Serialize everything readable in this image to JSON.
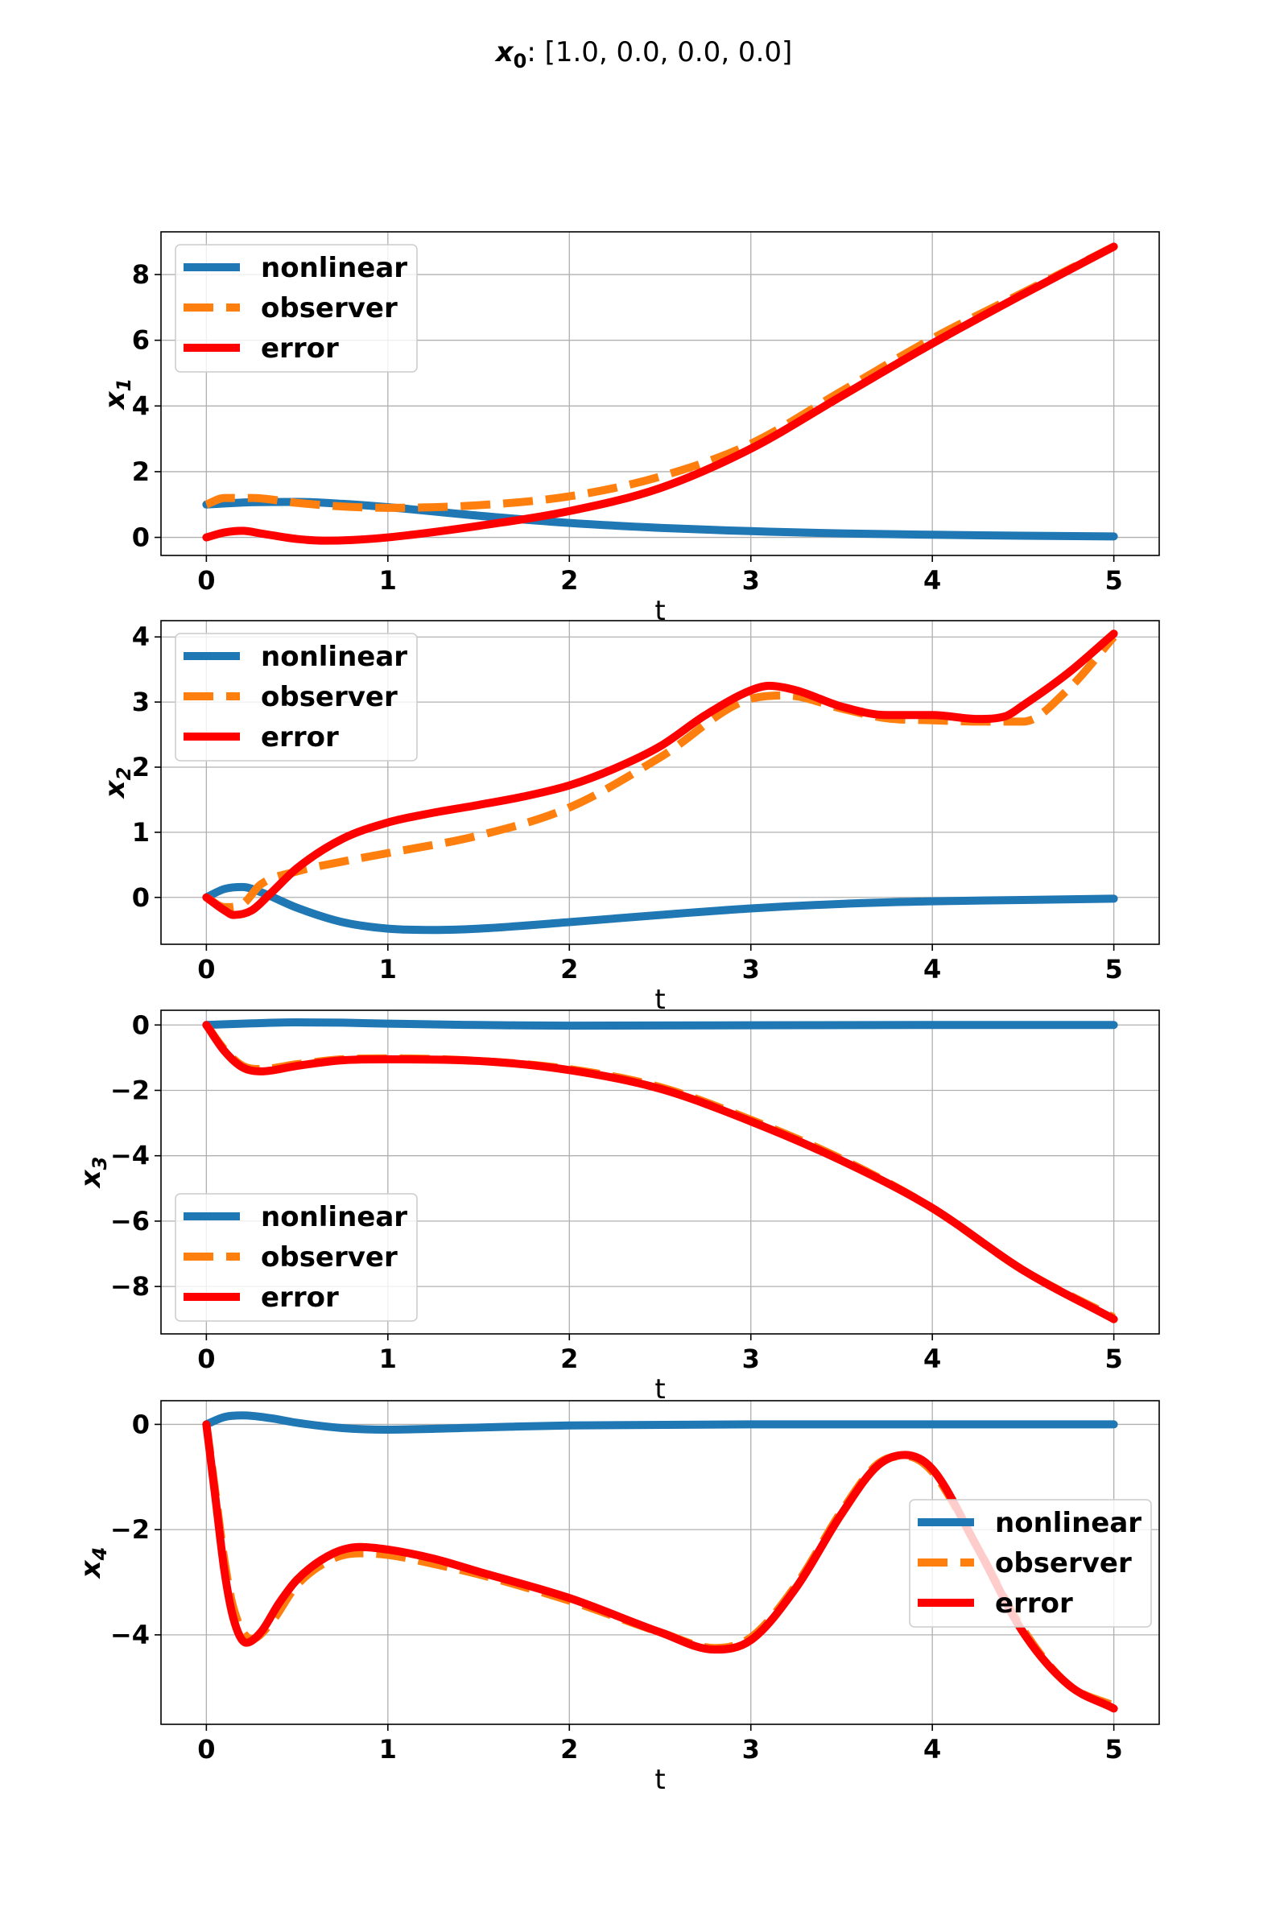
{
  "figure": {
    "title_symbol": "x",
    "title_subscript": "0",
    "title_rest": ": [1.0, 0.0, 0.0, 0.0]"
  },
  "colors": {
    "nonlinear": "#1f77b4",
    "observer": "#ff7f0e",
    "error": "#ff0000",
    "grid": "#b0b0b0",
    "legend_border": "#cccccc"
  },
  "chart_data": [
    {
      "type": "line",
      "xlabel": "t",
      "ylabel_symbol": "x",
      "ylabel_subscript": "1",
      "xlim": [
        -0.25,
        5.25
      ],
      "ylim": [
        -0.55,
        9.3
      ],
      "xticks": [
        0,
        1,
        2,
        3,
        4,
        5
      ],
      "yticks": [
        0,
        2,
        4,
        6,
        8
      ],
      "grid": true,
      "legend_position": "upper left",
      "series": [
        {
          "name": "nonlinear",
          "style": "solid",
          "x": [
            0,
            0.25,
            0.5,
            0.75,
            1,
            1.5,
            2,
            2.5,
            3,
            3.5,
            4,
            4.5,
            5
          ],
          "y": [
            1.0,
            1.07,
            1.08,
            1.02,
            0.92,
            0.66,
            0.44,
            0.29,
            0.19,
            0.12,
            0.08,
            0.05,
            0.03
          ]
        },
        {
          "name": "observer",
          "style": "dashed",
          "x": [
            0,
            0.1,
            0.25,
            0.5,
            0.75,
            1,
            1.5,
            2,
            2.5,
            3,
            3.5,
            4,
            4.5,
            5
          ],
          "y": [
            1.0,
            1.2,
            1.2,
            1.05,
            0.94,
            0.9,
            0.98,
            1.25,
            1.85,
            2.85,
            4.45,
            6.05,
            7.45,
            8.85
          ]
        },
        {
          "name": "error",
          "style": "solid",
          "x": [
            0,
            0.1,
            0.2,
            0.3,
            0.5,
            0.65,
            0.8,
            1,
            1.5,
            2,
            2.5,
            3,
            3.5,
            4,
            4.5,
            5
          ],
          "y": [
            0.0,
            0.15,
            0.2,
            0.12,
            -0.05,
            -0.1,
            -0.08,
            0.0,
            0.35,
            0.8,
            1.5,
            2.7,
            4.3,
            5.9,
            7.4,
            8.85
          ]
        }
      ]
    },
    {
      "type": "line",
      "xlabel": "t",
      "ylabel_symbol": "x",
      "ylabel_subscript": "2",
      "xlim": [
        -0.25,
        5.25
      ],
      "ylim": [
        -0.72,
        4.25
      ],
      "xticks": [
        0,
        1,
        2,
        3,
        4,
        5
      ],
      "yticks": [
        0,
        1,
        2,
        3,
        4
      ],
      "grid": true,
      "legend_position": "upper left",
      "series": [
        {
          "name": "nonlinear",
          "style": "solid",
          "x": [
            0,
            0.1,
            0.2,
            0.3,
            0.5,
            0.75,
            1,
            1.25,
            1.5,
            2,
            2.5,
            3,
            3.5,
            4,
            4.5,
            5
          ],
          "y": [
            0.0,
            0.13,
            0.16,
            0.08,
            -0.16,
            -0.38,
            -0.48,
            -0.5,
            -0.48,
            -0.38,
            -0.27,
            -0.17,
            -0.1,
            -0.06,
            -0.04,
            -0.02
          ]
        },
        {
          "name": "observer",
          "style": "dashed",
          "x": [
            0,
            0.1,
            0.2,
            0.3,
            0.5,
            0.75,
            1,
            1.5,
            2,
            2.5,
            3,
            3.2,
            3.5,
            3.75,
            4,
            4.25,
            4.5,
            4.75,
            5
          ],
          "y": [
            0.0,
            -0.15,
            -0.1,
            0.2,
            0.4,
            0.55,
            0.68,
            0.95,
            1.38,
            2.15,
            3.05,
            3.1,
            2.9,
            2.75,
            2.72,
            2.7,
            2.7,
            3.2,
            4.0
          ]
        },
        {
          "name": "error",
          "style": "solid",
          "x": [
            0,
            0.1,
            0.15,
            0.25,
            0.35,
            0.5,
            0.75,
            1,
            1.25,
            1.5,
            1.75,
            2,
            2.25,
            2.5,
            2.75,
            3,
            3.1,
            3.25,
            3.5,
            3.75,
            4,
            4.25,
            4.4,
            4.5,
            4.75,
            5
          ],
          "y": [
            0.0,
            -0.2,
            -0.27,
            -0.2,
            0.05,
            0.45,
            0.9,
            1.15,
            1.3,
            1.42,
            1.55,
            1.72,
            1.98,
            2.32,
            2.8,
            3.18,
            3.25,
            3.18,
            2.93,
            2.8,
            2.8,
            2.74,
            2.78,
            2.95,
            3.45,
            4.05
          ]
        }
      ]
    },
    {
      "type": "line",
      "xlabel": "t",
      "ylabel_symbol": "x",
      "ylabel_subscript": "3",
      "xlim": [
        -0.25,
        5.25
      ],
      "ylim": [
        -9.45,
        0.45
      ],
      "xticks": [
        0,
        1,
        2,
        3,
        4,
        5
      ],
      "yticks": [
        0,
        -2,
        -4,
        -6,
        -8
      ],
      "ytick_labels": [
        "0",
        "−2",
        "−4",
        "−6",
        "−8"
      ],
      "grid": true,
      "legend_position": "lower left",
      "series": [
        {
          "name": "nonlinear",
          "style": "solid",
          "x": [
            0,
            0.25,
            0.5,
            0.75,
            1,
            1.5,
            2,
            3,
            4,
            5
          ],
          "y": [
            0.0,
            0.05,
            0.08,
            0.07,
            0.04,
            0.0,
            -0.02,
            -0.01,
            0.0,
            0.0
          ]
        },
        {
          "name": "observer",
          "style": "dashed",
          "x": [
            0,
            0.1,
            0.2,
            0.3,
            0.5,
            0.75,
            1,
            1.5,
            2,
            2.5,
            3,
            3.5,
            4,
            4.5,
            5
          ],
          "y": [
            0.0,
            -0.75,
            -1.25,
            -1.35,
            -1.2,
            -1.05,
            -1.02,
            -1.1,
            -1.35,
            -1.9,
            -2.9,
            -4.1,
            -5.6,
            -7.5,
            -8.95
          ]
        },
        {
          "name": "error",
          "style": "solid",
          "x": [
            0,
            0.1,
            0.2,
            0.3,
            0.5,
            0.75,
            1,
            1.5,
            2,
            2.5,
            3,
            3.5,
            4,
            4.5,
            5
          ],
          "y": [
            0.0,
            -0.8,
            -1.3,
            -1.42,
            -1.25,
            -1.08,
            -1.05,
            -1.1,
            -1.38,
            -1.95,
            -2.95,
            -4.15,
            -5.6,
            -7.5,
            -9.0
          ]
        }
      ]
    },
    {
      "type": "line",
      "xlabel": "t",
      "ylabel_symbol": "x",
      "ylabel_subscript": "4",
      "xlim": [
        -0.25,
        5.25
      ],
      "ylim": [
        -5.7,
        0.45
      ],
      "xticks": [
        0,
        1,
        2,
        3,
        4,
        5
      ],
      "yticks": [
        0,
        -2,
        -4
      ],
      "ytick_labels": [
        "0",
        "−2",
        "−4"
      ],
      "grid": true,
      "legend_position": "center right",
      "series": [
        {
          "name": "nonlinear",
          "style": "solid",
          "x": [
            0,
            0.1,
            0.2,
            0.35,
            0.5,
            0.75,
            1,
            1.5,
            2,
            3,
            4,
            5
          ],
          "y": [
            0.0,
            0.14,
            0.17,
            0.12,
            0.03,
            -0.07,
            -0.1,
            -0.06,
            -0.02,
            0.0,
            0.0,
            0.0
          ]
        },
        {
          "name": "observer",
          "style": "dashed",
          "x": [
            0,
            0.05,
            0.1,
            0.15,
            0.25,
            0.35,
            0.5,
            0.7,
            0.85,
            1,
            1.25,
            1.5,
            2,
            2.5,
            2.8,
            3,
            3.25,
            3.5,
            3.7,
            3.85,
            4,
            4.25,
            4.5,
            4.75,
            5
          ],
          "y": [
            0.0,
            -1.3,
            -2.6,
            -3.5,
            -4.08,
            -3.8,
            -3.05,
            -2.55,
            -2.45,
            -2.48,
            -2.65,
            -2.85,
            -3.35,
            -3.95,
            -4.25,
            -4.05,
            -3.05,
            -1.65,
            -0.75,
            -0.6,
            -0.9,
            -2.35,
            -3.9,
            -4.95,
            -5.35
          ]
        },
        {
          "name": "error",
          "style": "solid",
          "x": [
            0,
            0.05,
            0.1,
            0.15,
            0.22,
            0.3,
            0.4,
            0.5,
            0.7,
            0.85,
            1,
            1.25,
            1.5,
            2,
            2.5,
            2.8,
            3,
            3.25,
            3.5,
            3.7,
            3.85,
            4,
            4.25,
            4.5,
            4.75,
            5
          ],
          "y": [
            0.0,
            -1.4,
            -2.8,
            -3.7,
            -4.15,
            -3.95,
            -3.4,
            -2.95,
            -2.45,
            -2.33,
            -2.38,
            -2.55,
            -2.8,
            -3.3,
            -3.95,
            -4.28,
            -4.1,
            -3.1,
            -1.7,
            -0.78,
            -0.58,
            -0.85,
            -2.35,
            -3.95,
            -4.95,
            -5.4
          ]
        }
      ]
    }
  ]
}
